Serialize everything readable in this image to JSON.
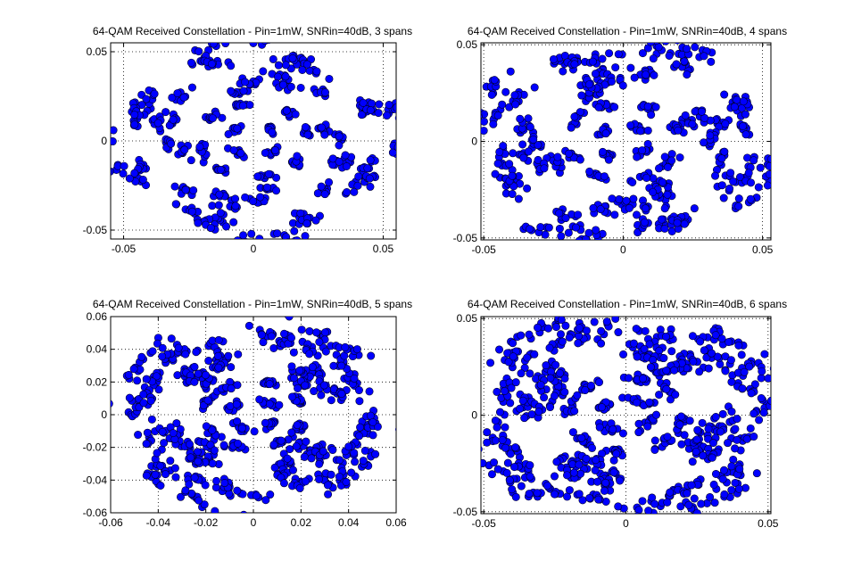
{
  "chart_data": [
    {
      "type": "scatter",
      "title": "64-QAM Received Constellation - Pin=1mW, SNRin=40dB, 3 spans",
      "xlabel": "",
      "ylabel": "",
      "xlim": [
        -0.055,
        0.055
      ],
      "ylim": [
        -0.055,
        0.055
      ],
      "xticks": [
        -0.05,
        0,
        0.05
      ],
      "yticks": [
        -0.05,
        0,
        0.05
      ],
      "xticklabels": [
        "-0.05",
        "0",
        "0.05"
      ],
      "yticklabels": [
        "-0.05",
        "0",
        "0.05"
      ],
      "grid": true,
      "marker": "open-circle-dense",
      "marker_color": "#0000ff",
      "constellation": "64-QAM",
      "grid_levels": [
        -7,
        -5,
        -3,
        -1,
        1,
        3,
        5,
        7
      ],
      "level_scale": 0.0065,
      "rotation_deg_per_unit": 340,
      "spread": 0.0028,
      "samples_per_symbol": 9
    },
    {
      "type": "scatter",
      "title": "64-QAM Received Constellation - Pin=1mW, SNRin=40dB, 4 spans",
      "xlabel": "",
      "ylabel": "",
      "xlim": [
        -0.051,
        0.053
      ],
      "ylim": [
        -0.051,
        0.051
      ],
      "xticks": [
        -0.05,
        0,
        0.05
      ],
      "yticks": [
        -0.05,
        0,
        0.05
      ],
      "xticklabels": [
        "-0.05",
        "0",
        "0.05"
      ],
      "yticklabels": [
        "-0.05",
        "0",
        "0.05"
      ],
      "grid": true,
      "marker": "open-circle-dense",
      "marker_color": "#0000ff",
      "constellation": "64-QAM",
      "grid_levels": [
        -7,
        -5,
        -3,
        -1,
        1,
        3,
        5,
        7
      ],
      "level_scale": 0.0062,
      "rotation_deg_per_unit": 430,
      "spread": 0.0032,
      "samples_per_symbol": 10
    },
    {
      "type": "scatter",
      "title": "64-QAM Received Constellation - Pin=1mW, SNRin=40dB, 5 spans",
      "xlabel": "",
      "ylabel": "",
      "xlim": [
        -0.06,
        0.06
      ],
      "ylim": [
        -0.06,
        0.06
      ],
      "xticks": [
        -0.06,
        -0.04,
        -0.02,
        0,
        0.02,
        0.04,
        0.06
      ],
      "yticks": [
        -0.06,
        -0.04,
        -0.02,
        0,
        0.02,
        0.04,
        0.06
      ],
      "xticklabels": [
        "-0.06",
        "-0.04",
        "-0.02",
        "0",
        "0.02",
        "0.04",
        "0.06"
      ],
      "yticklabels": [
        "-0.06",
        "-0.04",
        "-0.02",
        "0",
        "0.02",
        "0.04",
        "0.06"
      ],
      "grid": true,
      "marker": "open-circle-dense",
      "marker_color": "#0000ff",
      "constellation": "64-QAM",
      "grid_levels": [
        -7,
        -5,
        -3,
        -1,
        1,
        3,
        5,
        7
      ],
      "level_scale": 0.0065,
      "rotation_deg_per_unit": 540,
      "spread": 0.0036,
      "samples_per_symbol": 11
    },
    {
      "type": "scatter",
      "title": "64-QAM Received Constellation - Pin=1mW, SNRin=40dB, 6 spans",
      "xlabel": "",
      "ylabel": "",
      "xlim": [
        -0.051,
        0.051
      ],
      "ylim": [
        -0.051,
        0.051
      ],
      "xticks": [
        -0.05,
        0,
        0.05
      ],
      "yticks": [
        -0.05,
        0,
        0.05
      ],
      "xticklabels": [
        "-0.05",
        "0",
        "0.05"
      ],
      "yticklabels": [
        "-0.05",
        "0",
        "0.05"
      ],
      "grid": true,
      "marker": "open-circle-dense",
      "marker_color": "#0000ff",
      "constellation": "64-QAM",
      "grid_levels": [
        -7,
        -5,
        -3,
        -1,
        1,
        3,
        5,
        7
      ],
      "level_scale": 0.0062,
      "rotation_deg_per_unit": 650,
      "spread": 0.004,
      "samples_per_symbol": 12
    }
  ]
}
